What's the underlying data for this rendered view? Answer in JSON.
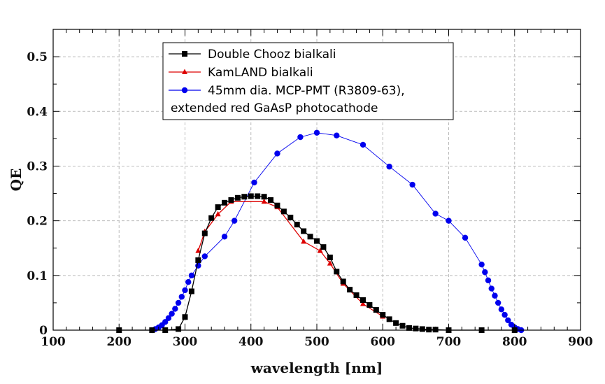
{
  "chart_data": {
    "type": "line",
    "title": "",
    "xlabel": "wavelength [nm]",
    "ylabel": "QE",
    "xlim": [
      100,
      900
    ],
    "ylim": [
      0,
      0.55
    ],
    "x_ticks": [
      100,
      200,
      300,
      400,
      500,
      600,
      700,
      800,
      900
    ],
    "y_ticks": [
      0,
      0.1,
      0.2,
      0.3,
      0.4,
      0.5
    ],
    "x_tick_labels": [
      "100",
      "200",
      "300",
      "400",
      "500",
      "600",
      "700",
      "800",
      "900"
    ],
    "y_tick_labels": [
      "0",
      "0.1",
      "0.2",
      "0.3",
      "0.4",
      "0.5"
    ],
    "grid": true,
    "legend_position": "top-center",
    "series": [
      {
        "name": "Double Chooz bialkali",
        "color": "#000000",
        "marker": "square",
        "x": [
          200,
          250,
          270,
          290,
          300,
          310,
          320,
          330,
          340,
          350,
          360,
          370,
          380,
          390,
          400,
          410,
          420,
          430,
          440,
          450,
          460,
          470,
          480,
          490,
          500,
          510,
          520,
          530,
          540,
          550,
          560,
          570,
          580,
          590,
          600,
          610,
          620,
          630,
          640,
          650,
          660,
          670,
          680,
          700,
          750,
          800
        ],
        "y": [
          0,
          0,
          0,
          0.002,
          0.024,
          0.071,
          0.128,
          0.177,
          0.205,
          0.225,
          0.233,
          0.238,
          0.242,
          0.244,
          0.245,
          0.245,
          0.244,
          0.238,
          0.228,
          0.217,
          0.206,
          0.193,
          0.181,
          0.171,
          0.163,
          0.152,
          0.133,
          0.107,
          0.089,
          0.074,
          0.064,
          0.055,
          0.046,
          0.037,
          0.028,
          0.02,
          0.013,
          0.008,
          0.004,
          0.003,
          0.002,
          0.001,
          0.001,
          0,
          0,
          0
        ]
      },
      {
        "name": "KamLAND bialkali",
        "color": "#dd0000",
        "marker": "triangle",
        "x": [
          320,
          330,
          350,
          370,
          420,
          440,
          480,
          505,
          520,
          540,
          570,
          600
        ],
        "y": [
          0.145,
          0.18,
          0.212,
          0.235,
          0.235,
          0.225,
          0.162,
          0.145,
          0.122,
          0.085,
          0.048,
          0.025
        ]
      },
      {
        "name": "45mm dia. MCP-PMT (R3809-63),",
        "name_line2": "extended red GaAsP photocathode",
        "color": "#0000ee",
        "marker": "circle",
        "x": [
          250,
          255,
          260,
          265,
          270,
          275,
          280,
          285,
          290,
          295,
          300,
          305,
          310,
          320,
          330,
          360,
          375,
          405,
          440,
          475,
          500,
          530,
          570,
          610,
          645,
          680,
          700,
          725,
          750,
          755,
          760,
          765,
          770,
          775,
          780,
          785,
          790,
          795,
          800,
          805,
          810
        ],
        "y": [
          0,
          0.002,
          0.005,
          0.009,
          0.015,
          0.022,
          0.03,
          0.039,
          0.05,
          0.061,
          0.073,
          0.088,
          0.1,
          0.118,
          0.135,
          0.171,
          0.2,
          0.27,
          0.323,
          0.353,
          0.361,
          0.356,
          0.339,
          0.299,
          0.266,
          0.213,
          0.2,
          0.169,
          0.12,
          0.106,
          0.091,
          0.076,
          0.063,
          0.05,
          0.038,
          0.028,
          0.018,
          0.01,
          0.005,
          0.002,
          0
        ]
      }
    ]
  }
}
